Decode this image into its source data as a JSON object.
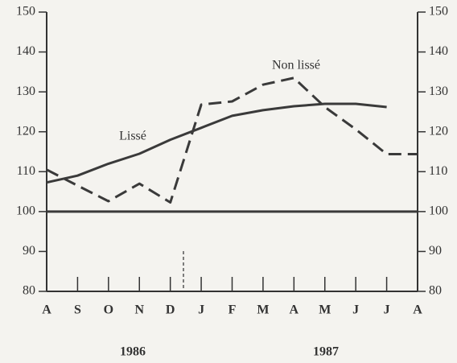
{
  "chart_data": {
    "type": "line",
    "categories": [
      "A",
      "S",
      "O",
      "N",
      "D",
      "J",
      "F",
      "M",
      "A",
      "M",
      "J",
      "J",
      "A"
    ],
    "years": [
      "1986",
      "1987"
    ],
    "series": [
      {
        "name": "Lissé",
        "color": "#3a3a3a",
        "dashed": false,
        "values": [
          107.3,
          109,
          112,
          114.5,
          118,
          121,
          124,
          125.4,
          126.4,
          127,
          127,
          126.2,
          null
        ]
      },
      {
        "name": "Non lissé",
        "color": "#3a3a3a",
        "dashed": true,
        "values": [
          110.5,
          106.5,
          102.6,
          107,
          102.3,
          126.8,
          127.6,
          131.8,
          133.5,
          126.2,
          120.6,
          114.4,
          114.4
        ]
      }
    ],
    "ylim": [
      80,
      150
    ],
    "yticks": [
      80,
      90,
      100,
      110,
      120,
      130,
      140,
      150
    ],
    "y2lim": [
      80,
      150
    ],
    "y2ticks": [
      80,
      90,
      100,
      110,
      120,
      130,
      140,
      150
    ],
    "reference_line": 100
  }
}
